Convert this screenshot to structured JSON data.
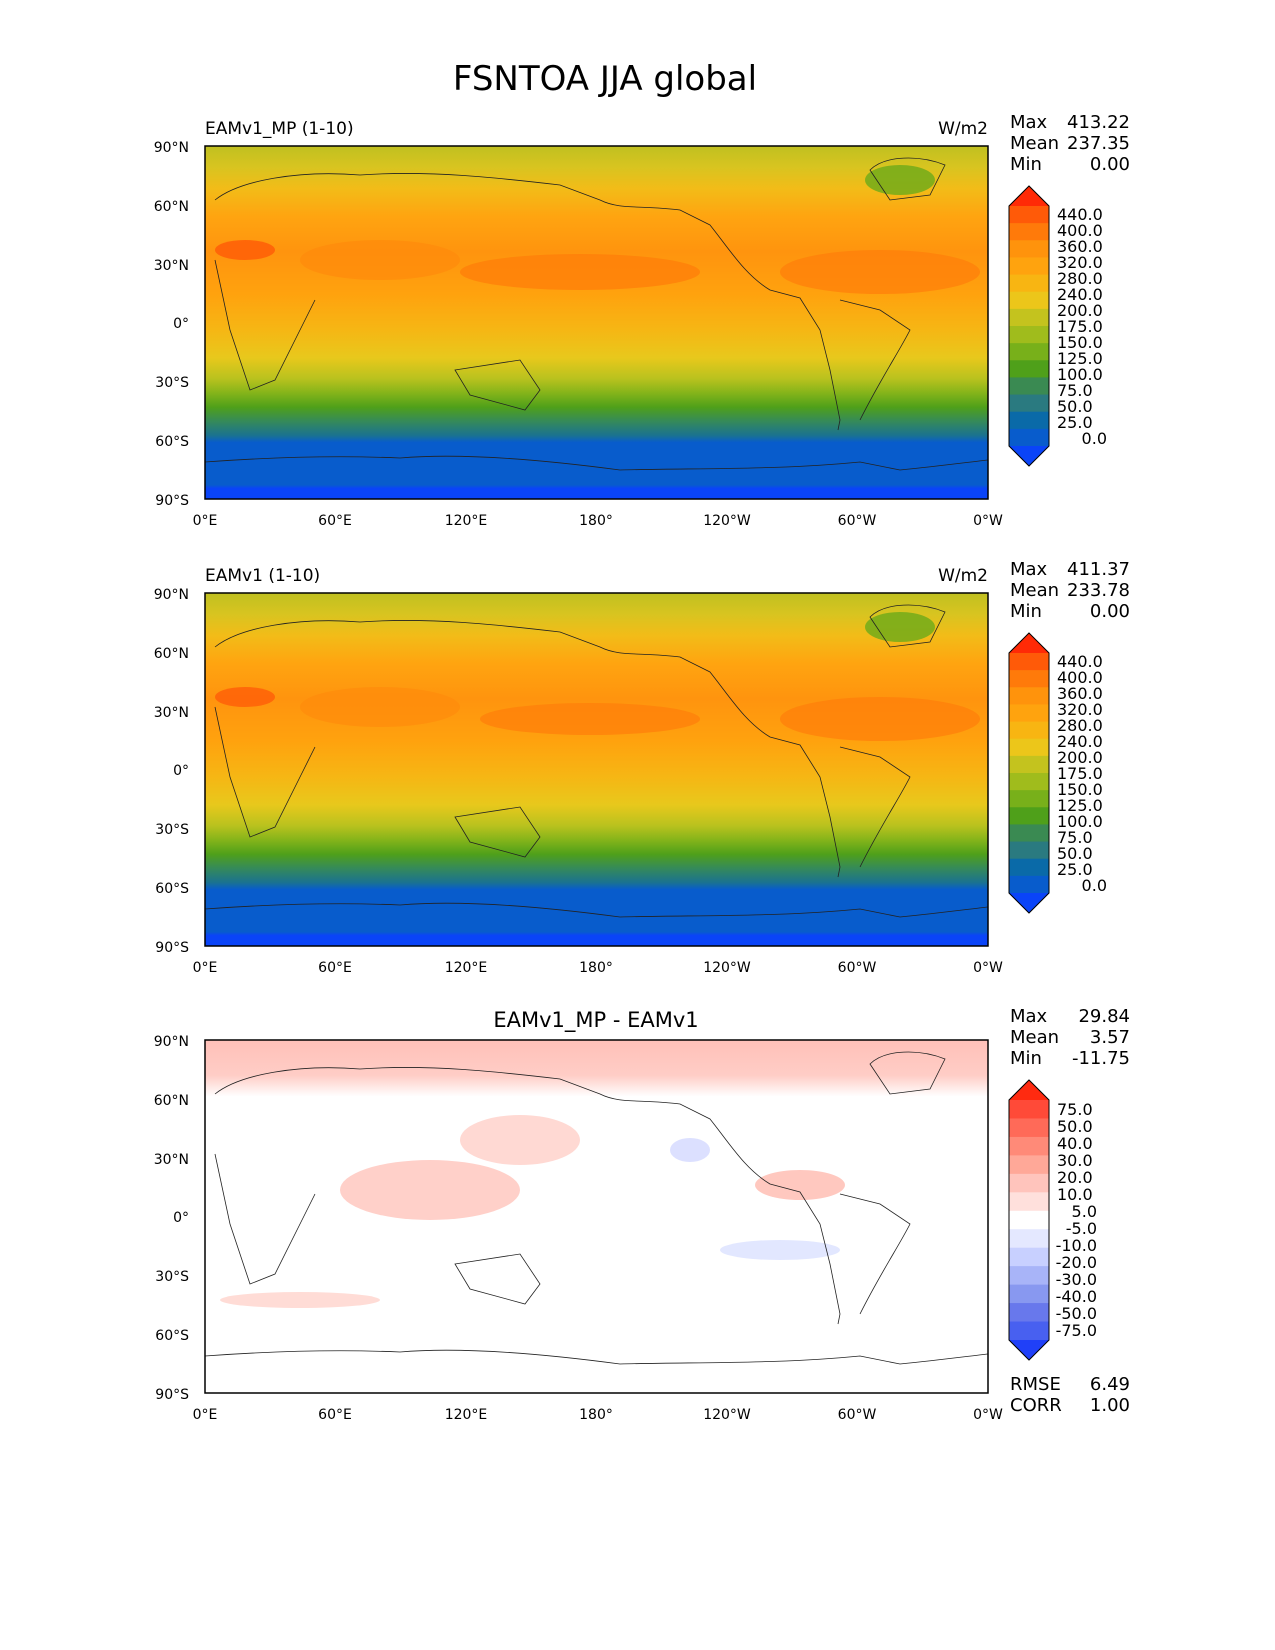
{
  "figure": {
    "title": "FSNTOA JJA global",
    "lon_ticks": [
      "0°E",
      "60°E",
      "120°E",
      "180°",
      "120°W",
      "60°W",
      "0°W"
    ],
    "lat_ticks": [
      "90°N",
      "60°N",
      "30°N",
      "0°",
      "30°S",
      "60°S",
      "90°S"
    ]
  },
  "panels": [
    {
      "title_left": "EAMv1_MP (1-10)",
      "title_center": "",
      "units": "W/m2",
      "stats": [
        {
          "label": "Max",
          "value": "413.22"
        },
        {
          "label": "Mean",
          "value": "237.35"
        },
        {
          "label": "Min",
          "value": "0.00"
        }
      ],
      "colorbar": {
        "labels": [
          "440.0",
          "400.0",
          "360.0",
          "320.0",
          "280.0",
          "240.0",
          "200.0",
          "175.0",
          "150.0",
          "125.0",
          "100.0",
          "75.0",
          "50.0",
          "25.0",
          "0.0"
        ],
        "colors": [
          "#ff2a06",
          "#ff5a08",
          "#ff7a0a",
          "#ff930c",
          "#ffa30e",
          "#f8b512",
          "#ecc61a",
          "#c4c31e",
          "#a0bc1c",
          "#78b01a",
          "#4fa01a",
          "#3a8a52",
          "#2a7a80",
          "#0a6aa8",
          "#085ccc",
          "#0a44f8"
        ]
      },
      "field": "absolute",
      "mean_value": 237.35
    },
    {
      "title_left": "EAMv1 (1-10)",
      "title_center": "",
      "units": "W/m2",
      "stats": [
        {
          "label": "Max",
          "value": "411.37"
        },
        {
          "label": "Mean",
          "value": "233.78"
        },
        {
          "label": "Min",
          "value": "0.00"
        }
      ],
      "colorbar": {
        "labels": [
          "440.0",
          "400.0",
          "360.0",
          "320.0",
          "280.0",
          "240.0",
          "200.0",
          "175.0",
          "150.0",
          "125.0",
          "100.0",
          "75.0",
          "50.0",
          "25.0",
          "0.0"
        ],
        "colors": [
          "#ff2a06",
          "#ff5a08",
          "#ff7a0a",
          "#ff930c",
          "#ffa30e",
          "#f8b512",
          "#ecc61a",
          "#c4c31e",
          "#a0bc1c",
          "#78b01a",
          "#4fa01a",
          "#3a8a52",
          "#2a7a80",
          "#0a6aa8",
          "#085ccc",
          "#0a44f8"
        ]
      },
      "field": "absolute",
      "mean_value": 233.78
    },
    {
      "title_left": "",
      "title_center": "EAMv1_MP - EAMv1",
      "units": "",
      "stats": [
        {
          "label": "Max",
          "value": "29.84"
        },
        {
          "label": "Mean",
          "value": "3.57"
        },
        {
          "label": "Min",
          "value": "-11.75"
        }
      ],
      "extra_stats": [
        {
          "label": "RMSE",
          "value": "6.49"
        },
        {
          "label": "CORR",
          "value": "1.00"
        }
      ],
      "colorbar": {
        "labels": [
          "75.0",
          "50.0",
          "40.0",
          "30.0",
          "20.0",
          "10.0",
          "5.0",
          "-5.0",
          "-10.0",
          "-20.0",
          "-30.0",
          "-40.0",
          "-50.0",
          "-75.0"
        ],
        "colors": [
          "#ff2a10",
          "#ff4a38",
          "#ff6a58",
          "#ff8a78",
          "#ffa898",
          "#ffc4bc",
          "#ffe0dc",
          "#ffffff",
          "#e4e8ff",
          "#c8d0ff",
          "#a8b4f8",
          "#8898f0",
          "#6878ec",
          "#4860f0",
          "#2040f8"
        ]
      },
      "field": "difference",
      "mean_value": 3.57
    }
  ]
}
